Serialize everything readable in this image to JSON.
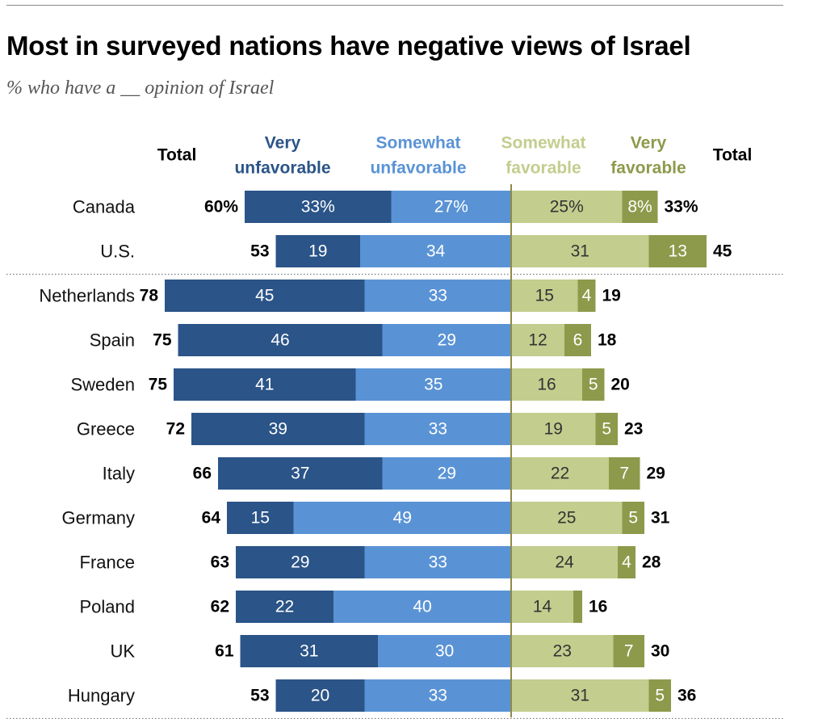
{
  "title": "Most in surveyed nations have negative views of Israel",
  "subtitle": "% who have a __ opinion of Israel",
  "chart_data": {
    "type": "bar",
    "orientation": "horizontal-diverging",
    "colors": {
      "very_unfavorable": "#2b5488",
      "somewhat_unfavorable": "#5a93d5",
      "somewhat_favorable": "#c3cd8e",
      "very_favorable": "#8d9a4b",
      "center_line": "#8f8a4a"
    },
    "headers": {
      "total_left": "Total",
      "very_unfavorable": [
        "Very",
        "unfavorable"
      ],
      "somewhat_unfavorable": [
        "Somewhat",
        "unfavorable"
      ],
      "somewhat_favorable": [
        "Somewhat",
        "favorable"
      ],
      "very_favorable": [
        "Very",
        "favorable"
      ],
      "total_right": "Total"
    },
    "series": [
      {
        "name": "Very unfavorable",
        "key": "very_unfavorable"
      },
      {
        "name": "Somewhat unfavorable",
        "key": "somewhat_unfavorable"
      },
      {
        "name": "Somewhat favorable",
        "key": "somewhat_favorable"
      },
      {
        "name": "Very favorable",
        "key": "very_favorable"
      }
    ],
    "rows": [
      {
        "country": "Canada",
        "unfav_total": 60,
        "very_unfav": 33,
        "somewhat_unfav": 27,
        "somewhat_fav": 25,
        "very_fav": 8,
        "fav_total": 33,
        "labels": {
          "unfav_total": "60%",
          "very_unfav": "33%",
          "somewhat_unfav": "27%",
          "somewhat_fav": "25%",
          "very_fav": "8%",
          "fav_total": "33%"
        }
      },
      {
        "country": "U.S.",
        "unfav_total": 53,
        "very_unfav": 19,
        "somewhat_unfav": 34,
        "somewhat_fav": 31,
        "very_fav": 13,
        "fav_total": 45,
        "labels": {
          "unfav_total": "53",
          "very_unfav": "19",
          "somewhat_unfav": "34",
          "somewhat_fav": "31",
          "very_fav": "13",
          "fav_total": "45"
        }
      },
      {
        "country": "Netherlands",
        "unfav_total": 78,
        "very_unfav": 45,
        "somewhat_unfav": 33,
        "somewhat_fav": 15,
        "very_fav": 4,
        "fav_total": 19,
        "labels": {
          "unfav_total": "78",
          "very_unfav": "45",
          "somewhat_unfav": "33",
          "somewhat_fav": "15",
          "very_fav": "4",
          "fav_total": "19"
        }
      },
      {
        "country": "Spain",
        "unfav_total": 75,
        "very_unfav": 46,
        "somewhat_unfav": 29,
        "somewhat_fav": 12,
        "very_fav": 6,
        "fav_total": 18,
        "labels": {
          "unfav_total": "75",
          "very_unfav": "46",
          "somewhat_unfav": "29",
          "somewhat_fav": "12",
          "very_fav": "6",
          "fav_total": "18"
        }
      },
      {
        "country": "Sweden",
        "unfav_total": 75,
        "very_unfav": 41,
        "somewhat_unfav": 35,
        "somewhat_fav": 16,
        "very_fav": 5,
        "fav_total": 20,
        "labels": {
          "unfav_total": "75",
          "very_unfav": "41",
          "somewhat_unfav": "35",
          "somewhat_fav": "16",
          "very_fav": "5",
          "fav_total": "20"
        }
      },
      {
        "country": "Greece",
        "unfav_total": 72,
        "very_unfav": 39,
        "somewhat_unfav": 33,
        "somewhat_fav": 19,
        "very_fav": 5,
        "fav_total": 23,
        "labels": {
          "unfav_total": "72",
          "very_unfav": "39",
          "somewhat_unfav": "33",
          "somewhat_fav": "19",
          "very_fav": "5",
          "fav_total": "23"
        }
      },
      {
        "country": "Italy",
        "unfav_total": 66,
        "very_unfav": 37,
        "somewhat_unfav": 29,
        "somewhat_fav": 22,
        "very_fav": 7,
        "fav_total": 29,
        "labels": {
          "unfav_total": "66",
          "very_unfav": "37",
          "somewhat_unfav": "29",
          "somewhat_fav": "22",
          "very_fav": "7",
          "fav_total": "29"
        }
      },
      {
        "country": "Germany",
        "unfav_total": 64,
        "very_unfav": 15,
        "somewhat_unfav": 49,
        "somewhat_fav": 25,
        "very_fav": 5,
        "fav_total": 31,
        "labels": {
          "unfav_total": "64",
          "very_unfav": "15",
          "somewhat_unfav": "49",
          "somewhat_fav": "25",
          "very_fav": "5",
          "fav_total": "31"
        }
      },
      {
        "country": "France",
        "unfav_total": 63,
        "very_unfav": 29,
        "somewhat_unfav": 33,
        "somewhat_fav": 24,
        "very_fav": 4,
        "fav_total": 28,
        "labels": {
          "unfav_total": "63",
          "very_unfav": "29",
          "somewhat_unfav": "33",
          "somewhat_fav": "24",
          "very_fav": "4",
          "fav_total": "28"
        }
      },
      {
        "country": "Poland",
        "unfav_total": 62,
        "very_unfav": 22,
        "somewhat_unfav": 40,
        "somewhat_fav": 14,
        "very_fav": 2,
        "fav_total": 16,
        "labels": {
          "unfav_total": "62",
          "very_unfav": "22",
          "somewhat_unfav": "40",
          "somewhat_fav": "14",
          "very_fav": "",
          "fav_total": "16"
        }
      },
      {
        "country": "UK",
        "unfav_total": 61,
        "very_unfav": 31,
        "somewhat_unfav": 30,
        "somewhat_fav": 23,
        "very_fav": 7,
        "fav_total": 30,
        "labels": {
          "unfav_total": "61",
          "very_unfav": "31",
          "somewhat_unfav": "30",
          "somewhat_fav": "23",
          "very_fav": "7",
          "fav_total": "30"
        }
      },
      {
        "country": "Hungary",
        "unfav_total": 53,
        "very_unfav": 20,
        "somewhat_unfav": 33,
        "somewhat_fav": 31,
        "very_fav": 5,
        "fav_total": 36,
        "labels": {
          "unfav_total": "53",
          "very_unfav": "20",
          "somewhat_unfav": "33",
          "somewhat_fav": "31",
          "very_fav": "5",
          "fav_total": "36"
        }
      }
    ],
    "group_separators_after": [
      "U.S.",
      "Hungary"
    ]
  }
}
